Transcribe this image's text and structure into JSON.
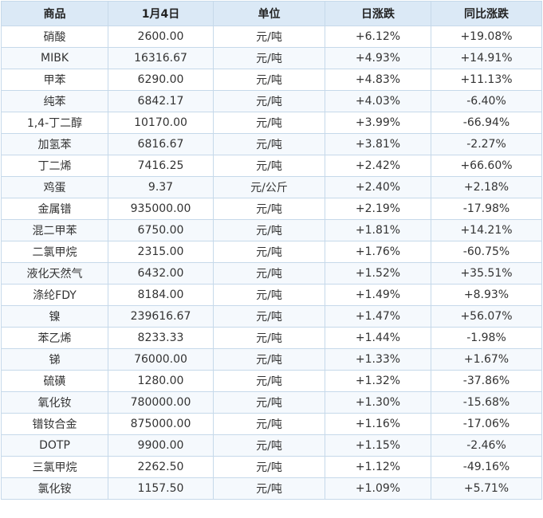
{
  "header": {
    "name": "商品",
    "price": "1月4日",
    "unit": "单位",
    "day_change": "日涨跌",
    "yoy_change": "同比涨跌"
  },
  "rows": [
    {
      "name": "硝酸",
      "price": "2600.00",
      "unit": "元/吨",
      "day": "+6.12%",
      "yoy": "+19.08%"
    },
    {
      "name": "MIBK",
      "price": "16316.67",
      "unit": "元/吨",
      "day": "+4.93%",
      "yoy": "+14.91%"
    },
    {
      "name": "甲苯",
      "price": "6290.00",
      "unit": "元/吨",
      "day": "+4.83%",
      "yoy": "+11.13%"
    },
    {
      "name": "纯苯",
      "price": "6842.17",
      "unit": "元/吨",
      "day": "+4.03%",
      "yoy": "-6.40%"
    },
    {
      "name": "1,4-丁二醇",
      "price": "10170.00",
      "unit": "元/吨",
      "day": "+3.99%",
      "yoy": "-66.94%"
    },
    {
      "name": "加氢苯",
      "price": "6816.67",
      "unit": "元/吨",
      "day": "+3.81%",
      "yoy": "-2.27%"
    },
    {
      "name": "丁二烯",
      "price": "7416.25",
      "unit": "元/吨",
      "day": "+2.42%",
      "yoy": "+66.60%"
    },
    {
      "name": "鸡蛋",
      "price": "9.37",
      "unit": "元/公斤",
      "day": "+2.40%",
      "yoy": "+2.18%"
    },
    {
      "name": "金属镨",
      "price": "935000.00",
      "unit": "元/吨",
      "day": "+2.19%",
      "yoy": "-17.98%"
    },
    {
      "name": "混二甲苯",
      "price": "6750.00",
      "unit": "元/吨",
      "day": "+1.81%",
      "yoy": "+14.21%"
    },
    {
      "name": "二氯甲烷",
      "price": "2315.00",
      "unit": "元/吨",
      "day": "+1.76%",
      "yoy": "-60.75%"
    },
    {
      "name": "液化天然气",
      "price": "6432.00",
      "unit": "元/吨",
      "day": "+1.52%",
      "yoy": "+35.51%"
    },
    {
      "name": "涤纶FDY",
      "price": "8184.00",
      "unit": "元/吨",
      "day": "+1.49%",
      "yoy": "+8.93%"
    },
    {
      "name": "镍",
      "price": "239616.67",
      "unit": "元/吨",
      "day": "+1.47%",
      "yoy": "+56.07%"
    },
    {
      "name": "苯乙烯",
      "price": "8233.33",
      "unit": "元/吨",
      "day": "+1.44%",
      "yoy": "-1.98%"
    },
    {
      "name": "锑",
      "price": "76000.00",
      "unit": "元/吨",
      "day": "+1.33%",
      "yoy": "+1.67%"
    },
    {
      "name": "硫磺",
      "price": "1280.00",
      "unit": "元/吨",
      "day": "+1.32%",
      "yoy": "-37.86%"
    },
    {
      "name": "氧化钕",
      "price": "780000.00",
      "unit": "元/吨",
      "day": "+1.30%",
      "yoy": "-15.68%"
    },
    {
      "name": "镨钕合金",
      "price": "875000.00",
      "unit": "元/吨",
      "day": "+1.16%",
      "yoy": "-17.06%"
    },
    {
      "name": "DOTP",
      "price": "9900.00",
      "unit": "元/吨",
      "day": "+1.15%",
      "yoy": "-2.46%"
    },
    {
      "name": "三氯甲烷",
      "price": "2262.50",
      "unit": "元/吨",
      "day": "+1.12%",
      "yoy": "-49.16%"
    },
    {
      "name": "氯化铵",
      "price": "1157.50",
      "unit": "元/吨",
      "day": "+1.09%",
      "yoy": "+5.71%"
    }
  ],
  "colors": {
    "header_bg": "#dbe9f6",
    "border": "#c6d9ea",
    "up": "#e5322d",
    "down": "#2c8a2c"
  }
}
